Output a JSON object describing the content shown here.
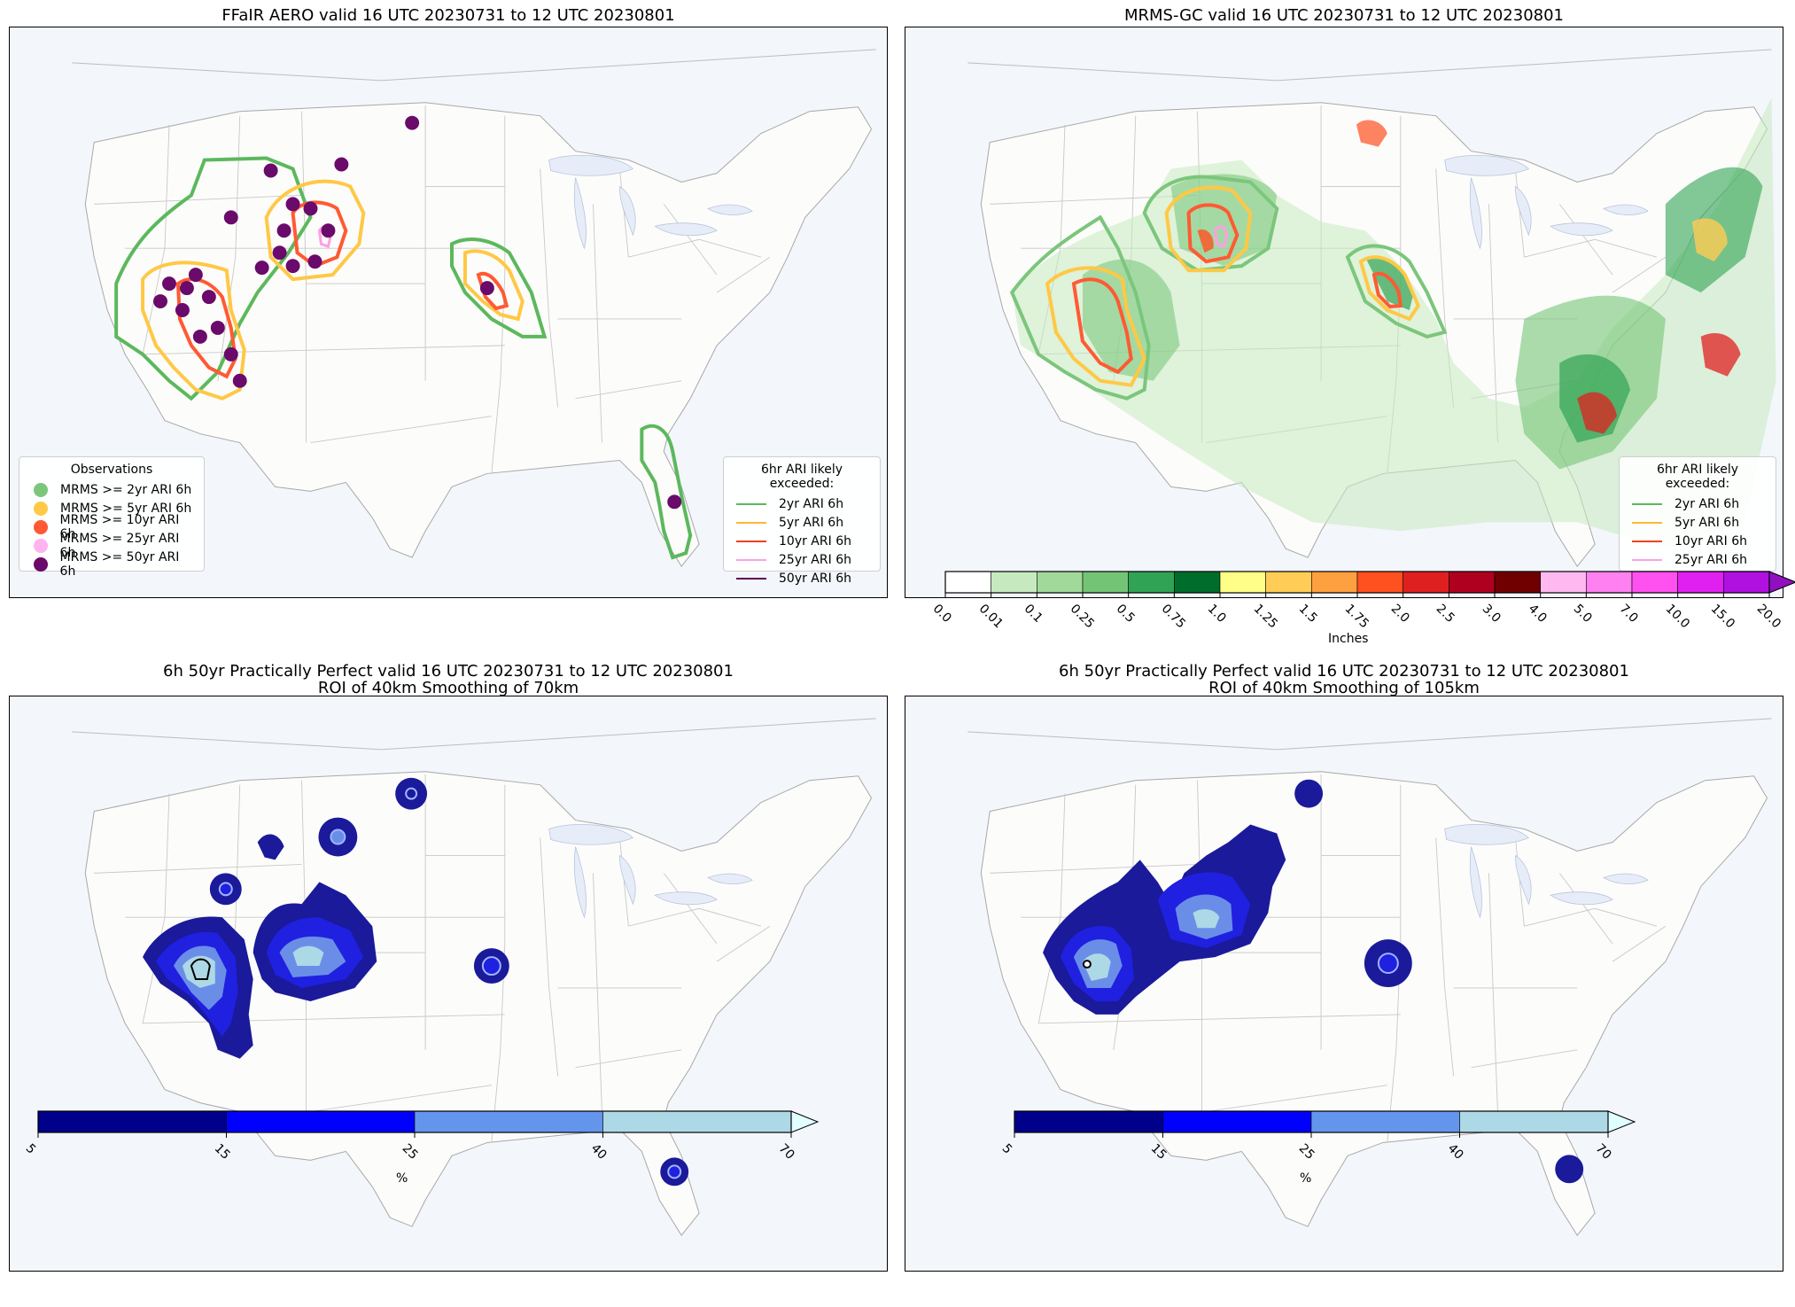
{
  "panels": [
    {
      "title": "FFaIR AERO valid 16 UTC 20230731 to 12 UTC 20230801"
    },
    {
      "title": "MRMS-GC valid 16 UTC 20230731 to 12 UTC 20230801"
    },
    {
      "title": "6h 50yr Practically Perfect valid 16 UTC 20230731 to 12 UTC 20230801\nROI of 40km Smoothing of 70km"
    },
    {
      "title": "6h 50yr Practically Perfect valid 16 UTC 20230731 to 12 UTC 20230801\nROI of 40km Smoothing of 105km"
    }
  ],
  "obs_legend": {
    "title": "Observations",
    "items": [
      {
        "label": "MRMS >= 2yr ARI 6h",
        "color": "#7bc67b"
      },
      {
        "label": "MRMS >= 5yr ARI 6h",
        "color": "#ffc845"
      },
      {
        "label": "MRMS >= 10yr ARI 6h",
        "color": "#ff5a33"
      },
      {
        "label": "MRMS >= 25yr ARI 6h",
        "color": "#ffb3f0"
      },
      {
        "label": "MRMS >= 50yr ARI 6h",
        "color": "#6a0a6a"
      }
    ]
  },
  "ari_legend": {
    "title": "6hr ARI likely exceeded:",
    "items": [
      {
        "label": "2yr ARI 6h",
        "color": "#5cb85c"
      },
      {
        "label": "5yr ARI 6h",
        "color": "#ffb833"
      },
      {
        "label": "10yr ARI 6h",
        "color": "#f04020"
      },
      {
        "label": "25yr ARI 6h",
        "color": "#ff9ee8"
      },
      {
        "label": "50yr ARI 6h",
        "color": "#5a005a"
      }
    ]
  },
  "precip_colorbar": {
    "label": "Inches",
    "ticks": [
      "0.0",
      "0.01",
      "0.1",
      "0.25",
      "0.5",
      "0.75",
      "1.0",
      "1.25",
      "1.5",
      "1.75",
      "2.0",
      "2.5",
      "3.0",
      "4.0",
      "5.0",
      "7.0",
      "10.0",
      "15.0",
      "20.0"
    ],
    "colors": [
      "#ffffff",
      "#c7e9c0",
      "#a1d99b",
      "#74c476",
      "#31a354",
      "#006d2c",
      "#ffff88",
      "#ffcc55",
      "#ffa040",
      "#ff5020",
      "#e02020",
      "#b00020",
      "#700000",
      "#ffb8f0",
      "#ff80f0",
      "#ff50f0",
      "#e020f0",
      "#b010e0"
    ],
    "extend_color": "#9010c0"
  },
  "prob_colorbar": {
    "label": "%",
    "ticks": [
      "5",
      "15",
      "25",
      "40",
      "70"
    ],
    "colors": [
      "#00008b",
      "#0000ff",
      "#6495ed",
      "#add8e6"
    ],
    "extend_color": "#e0ffff"
  }
}
